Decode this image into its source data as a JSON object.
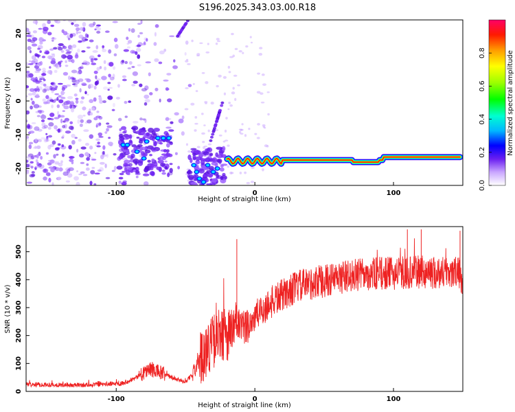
{
  "title": "S196.2025.343.03.00.R18",
  "colors": {
    "snr_line": "#ee2222",
    "scatter_purple": "#6a1ff0",
    "frame": "#000000"
  },
  "chart_data": [
    {
      "type": "heatmap",
      "name": "spectrogram",
      "xlabel": "Height of straight line (km)",
      "ylabel": "Frequency (Hz)",
      "xlim": [
        -165,
        150
      ],
      "ylim": [
        -25,
        24
      ],
      "xticks": [
        -100,
        0,
        100
      ],
      "yticks": [
        20,
        10,
        0,
        -10,
        -20
      ],
      "grid": false,
      "features": [
        {
          "label": "stable signal track",
          "x_range": [
            -20,
            148
          ],
          "frequency_hz": -17.5
        },
        {
          "label": "cluster A",
          "x_range": [
            -98,
            -60
          ],
          "frequency_hz": [
            -20,
            -10
          ]
        },
        {
          "label": "cluster B",
          "x_range": [
            -45,
            -22
          ],
          "frequency_hz": [
            -25,
            -15
          ]
        },
        {
          "label": "diagonal streak",
          "x_range": [
            -32,
            -22
          ],
          "frequency_hz": [
            -10,
            0
          ]
        },
        {
          "label": "diagonal streak",
          "x_range": [
            -55,
            -48
          ],
          "frequency_hz": [
            20,
            24
          ]
        }
      ],
      "colorbar": {
        "label": "Normalized spectral amplitude",
        "range": [
          0.0,
          1.0
        ],
        "ticks": [
          "0.0",
          "0.2",
          "0.4",
          "0.6",
          "0.8"
        ]
      }
    },
    {
      "type": "line",
      "name": "snr",
      "xlabel": "Height of straight line (km)",
      "ylabel": "SNR (10 * v/v)",
      "xlim": [
        -165,
        150
      ],
      "ylim": [
        0,
        590
      ],
      "xticks": [
        -100,
        0,
        100
      ],
      "yticks": [
        0,
        100,
        200,
        300,
        400,
        500
      ],
      "grid": false,
      "series": [
        {
          "name": "SNR",
          "x": [
            -165,
            -150,
            -130,
            -110,
            -95,
            -85,
            -80,
            -75,
            -70,
            -65,
            -60,
            -55,
            -50,
            -45,
            -40,
            -35,
            -30,
            -25,
            -20,
            -15,
            -13,
            -10,
            -5,
            0,
            5,
            10,
            15,
            20,
            25,
            30,
            40,
            50,
            60,
            70,
            80,
            90,
            100,
            110,
            120,
            130,
            140,
            148,
            150
          ],
          "values": [
            25,
            24,
            22,
            25,
            30,
            50,
            70,
            80,
            70,
            60,
            50,
            40,
            35,
            60,
            110,
            150,
            180,
            200,
            205,
            210,
            260,
            215,
            240,
            265,
            290,
            310,
            330,
            345,
            360,
            375,
            385,
            395,
            405,
            415,
            420,
            422,
            423,
            425,
            428,
            425,
            430,
            420,
            390
          ]
        }
      ],
      "spikes": [
        {
          "x": -13,
          "value": 545
        },
        {
          "x": 110,
          "value": 580
        },
        {
          "x": 120,
          "value": 580
        },
        {
          "x": 148,
          "value": 575
        }
      ]
    }
  ]
}
